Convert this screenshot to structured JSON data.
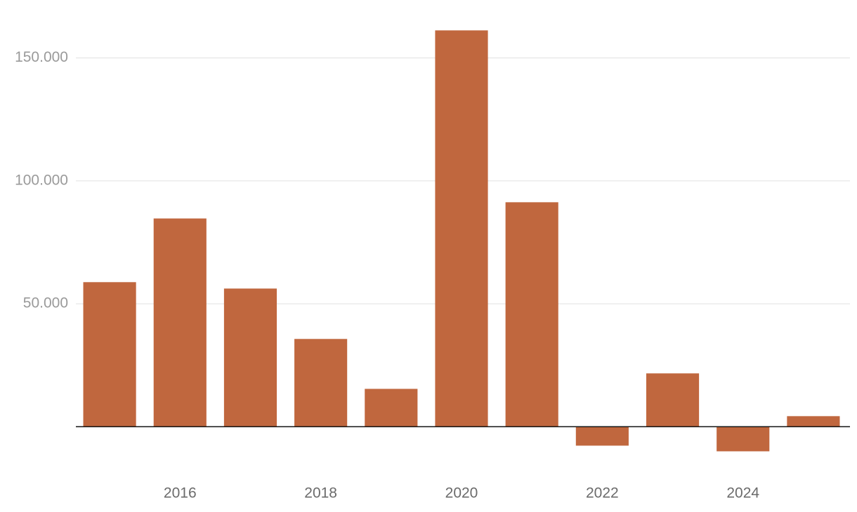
{
  "chart_data": {
    "type": "bar",
    "categories": [
      null,
      "2016",
      null,
      "2018",
      null,
      "2020",
      null,
      "2022",
      null,
      "2024",
      null
    ],
    "values": [
      58800,
      84700,
      56200,
      35700,
      15400,
      161200,
      91300,
      -7700,
      21700,
      -10000,
      4300
    ],
    "color": "#c0673e",
    "ylim": [
      -15000,
      165000
    ],
    "yticks": [
      {
        "value": 50000,
        "label": "50.000"
      },
      {
        "value": 100000,
        "label": "100.000"
      },
      {
        "value": 150000,
        "label": "150.000"
      }
    ],
    "grid": true
  }
}
